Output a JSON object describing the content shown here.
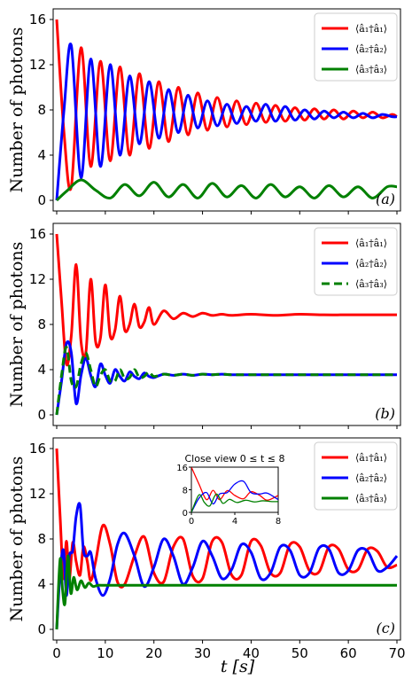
{
  "chart_data": [
    {
      "panel": "(a)",
      "type": "line",
      "ylabel": "Number of photons",
      "xlabel": "",
      "xlim": [
        0,
        70
      ],
      "ylim": [
        0,
        16
      ],
      "yticks": [
        "0",
        "4",
        "8",
        "12",
        "16"
      ],
      "grid": false,
      "legend_position": "top-right",
      "series": [
        {
          "name": "⟨â₁†â₁⟩",
          "color": "#ff0000",
          "x": [
            0,
            1.5,
            3,
            5,
            7,
            9,
            11,
            13,
            15,
            17,
            19,
            21,
            23,
            25,
            27,
            29,
            31,
            33,
            35,
            37,
            39,
            41,
            43,
            45,
            47,
            49,
            51,
            53,
            55,
            57,
            59,
            61,
            63,
            65,
            67,
            69,
            70
          ],
          "y": [
            16,
            6,
            1.2,
            13.5,
            3,
            12.3,
            3.5,
            11.8,
            4,
            11.2,
            4.6,
            10.5,
            5.2,
            10,
            5.8,
            9.5,
            6.2,
            9.1,
            6.5,
            8.8,
            6.7,
            8.6,
            6.9,
            8.4,
            7,
            8.2,
            7.1,
            8.1,
            7.2,
            8,
            7.2,
            7.9,
            7.3,
            7.8,
            7.3,
            7.6,
            7.4
          ]
        },
        {
          "name": "⟨â₂†â₂⟩",
          "color": "#0000ff",
          "x": [
            0,
            1.5,
            3,
            5,
            7,
            9,
            11,
            13,
            15,
            17,
            19,
            21,
            23,
            25,
            27,
            29,
            31,
            33,
            35,
            37,
            39,
            41,
            43,
            45,
            47,
            49,
            51,
            53,
            55,
            57,
            59,
            61,
            63,
            65,
            67,
            69,
            70
          ],
          "y": [
            0,
            8,
            13.7,
            2,
            12.5,
            3,
            12,
            4,
            11,
            5,
            10.5,
            5.5,
            9.8,
            6,
            9.3,
            6.4,
            8.8,
            6.6,
            8.5,
            6.8,
            8.3,
            7,
            8.5,
            7,
            8.3,
            7.1,
            8,
            7.2,
            7.9,
            7.3,
            7.8,
            7.3,
            7.7,
            7.3,
            7.6,
            7.4,
            7.4
          ]
        },
        {
          "name": "⟨â₃†â₃⟩",
          "color": "#008000",
          "x": [
            0,
            2,
            5,
            8,
            11,
            14,
            17,
            20,
            23,
            26,
            29,
            32,
            35,
            38,
            41,
            44,
            47,
            50,
            53,
            56,
            59,
            62,
            65,
            68,
            70
          ],
          "y": [
            0,
            0.8,
            1.8,
            0.9,
            0.2,
            1.4,
            0.4,
            1.6,
            0.3,
            1.4,
            0.2,
            1.5,
            0.3,
            1.3,
            0.2,
            1.4,
            0.3,
            1.2,
            0.2,
            1.3,
            0.3,
            1.2,
            0.2,
            1.2,
            1.2
          ]
        }
      ],
      "annotation": "(a)"
    },
    {
      "panel": "(b)",
      "type": "line",
      "ylabel": "Number of photons",
      "xlabel": "",
      "xlim": [
        0,
        70
      ],
      "ylim": [
        0,
        16
      ],
      "yticks": [
        "0",
        "4",
        "8",
        "12",
        "16"
      ],
      "grid": false,
      "legend_position": "top-right",
      "series": [
        {
          "name": "⟨â₁†â₁⟩",
          "color": "#ff0000",
          "x": [
            0,
            1,
            2,
            3,
            4,
            5,
            6,
            7,
            8,
            9,
            10,
            11,
            12,
            13,
            14,
            15,
            16,
            17,
            18,
            19,
            20,
            22,
            24,
            26,
            28,
            30,
            32,
            34,
            36,
            40,
            45,
            50,
            55,
            60,
            65,
            70
          ],
          "y": [
            16,
            10,
            4.5,
            7,
            13.3,
            6.5,
            5.5,
            12,
            6.5,
            6.8,
            11.5,
            7,
            7.5,
            10.5,
            7.5,
            8,
            9.8,
            7.8,
            8.2,
            9.5,
            8,
            9.2,
            8.5,
            9,
            8.7,
            9,
            8.8,
            8.9,
            8.8,
            8.9,
            8.8,
            8.9,
            8.85,
            8.85,
            8.85,
            8.85
          ]
        },
        {
          "name": "⟨â₂†â₂⟩",
          "color": "#0000ff",
          "x": [
            0,
            1,
            2,
            3,
            4,
            5,
            6,
            7,
            8,
            9,
            10,
            11,
            12,
            13,
            14,
            15,
            16,
            17,
            18,
            19,
            20,
            22,
            24,
            26,
            28,
            30,
            32,
            34,
            36,
            40,
            45,
            50,
            55,
            60,
            65,
            70
          ],
          "y": [
            0,
            3,
            6.3,
            5.5,
            1,
            3.5,
            5,
            3.5,
            2.5,
            4.5,
            3.5,
            2.8,
            4,
            3.4,
            3,
            3.8,
            3.4,
            3.2,
            3.7,
            3.4,
            3.3,
            3.6,
            3.5,
            3.6,
            3.5,
            3.6,
            3.55,
            3.6,
            3.55,
            3.55,
            3.55,
            3.55,
            3.55,
            3.55,
            3.55,
            3.55
          ]
        },
        {
          "name": "⟨â₃†â₃⟩",
          "color": "#008000",
          "dashed": true,
          "x": [
            0,
            1,
            2,
            3,
            4,
            5,
            6,
            7,
            8,
            9,
            10,
            11,
            12,
            13,
            14,
            15,
            16,
            17,
            18,
            19,
            20,
            22,
            24,
            26,
            28,
            30,
            32,
            34,
            36,
            40,
            45,
            50,
            55,
            60,
            65,
            70
          ],
          "y": [
            0,
            3.5,
            6,
            3,
            2.5,
            4.5,
            5.5,
            4,
            2.5,
            3.5,
            4,
            3,
            3,
            4,
            3.2,
            3.3,
            4,
            3.3,
            3.4,
            3.8,
            3.4,
            3.6,
            3.5,
            3.6,
            3.5,
            3.6,
            3.55,
            3.6,
            3.55,
            3.55,
            3.55,
            3.55,
            3.55,
            3.55,
            3.55,
            3.55
          ]
        }
      ],
      "annotation": "(b)"
    },
    {
      "panel": "(c)",
      "type": "line",
      "ylabel": "Number of photons",
      "xlabel": "t [s]",
      "xlim": [
        0,
        70
      ],
      "ylim": [
        0,
        16
      ],
      "xticks": [
        "0",
        "10",
        "20",
        "30",
        "40",
        "50",
        "60",
        "70"
      ],
      "yticks": [
        "0",
        "4",
        "8",
        "12",
        "16"
      ],
      "grid": false,
      "legend_position": "top-right",
      "series": [
        {
          "name": "⟨â₁†â₁⟩",
          "color": "#ff0000",
          "x": [
            0,
            0.7,
            1.4,
            2,
            2.6,
            3.3,
            4,
            4.8,
            5.5,
            6.3,
            7,
            8,
            9.5,
            11,
            12.5,
            14,
            16,
            18,
            20,
            22,
            24,
            26,
            28,
            30,
            32,
            34,
            36,
            38,
            40,
            42,
            44,
            46,
            48,
            50,
            52,
            54,
            56,
            58,
            60,
            62,
            64,
            66,
            68,
            70
          ],
          "y": [
            16,
            10,
            4.5,
            7.8,
            4.5,
            7.7,
            6,
            4.8,
            7.3,
            6,
            4.3,
            6,
            9.2,
            7.5,
            4.2,
            4,
            6.5,
            8.2,
            5,
            4.2,
            7.3,
            8,
            4.7,
            4.5,
            7.8,
            7.7,
            4.8,
            4.8,
            7.8,
            7.4,
            5,
            5,
            7.5,
            7.3,
            5.2,
            5.1,
            7.3,
            7.1,
            5.3,
            5.3,
            7.1,
            6.9,
            5.5,
            5.7
          ]
        },
        {
          "name": "⟨â₂†â₂⟩",
          "color": "#0000ff",
          "x": [
            0,
            0.7,
            1.4,
            2,
            2.6,
            3.3,
            4,
            4.8,
            5.5,
            6.3,
            7,
            8,
            9.5,
            11,
            12.5,
            14,
            16,
            18,
            20,
            22,
            24,
            26,
            28,
            30,
            32,
            34,
            36,
            38,
            40,
            42,
            44,
            46,
            48,
            50,
            52,
            54,
            56,
            58,
            60,
            62,
            64,
            66,
            68,
            70
          ],
          "y": [
            0,
            5,
            7,
            3,
            6.5,
            7,
            10,
            11,
            7,
            6.5,
            6.8,
            4.5,
            3,
            4.5,
            7.5,
            8.5,
            6.5,
            3.8,
            5.5,
            8,
            6.5,
            4,
            5.5,
            7.8,
            6.5,
            4.5,
            5.3,
            7.5,
            6.8,
            4.5,
            5,
            7.3,
            7,
            4.8,
            5,
            7.2,
            7.1,
            5,
            5.2,
            7,
            6.9,
            5.2,
            5.5,
            6.5
          ]
        },
        {
          "name": "⟨â₃†â₃⟩",
          "color": "#008000",
          "x": [
            0,
            0.7,
            1.2,
            1.7,
            2.3,
            2.9,
            3.5,
            4.2,
            5,
            5.8,
            6.6,
            7.5,
            8.5,
            10,
            15,
            20,
            30,
            40,
            50,
            60,
            70
          ],
          "y": [
            0,
            6.2,
            3.5,
            2.3,
            6.5,
            3.2,
            4.6,
            3.5,
            4.3,
            3.7,
            4.1,
            3.8,
            3.9,
            3.9,
            3.9,
            3.9,
            3.9,
            3.9,
            3.9,
            3.9,
            3.9
          ]
        }
      ],
      "annotation": "(c)",
      "inset": {
        "title": "Close view 0 ≤ t ≤ 8",
        "xlim": [
          0,
          8
        ],
        "ylim": [
          0,
          16
        ],
        "xticks": [
          "0",
          "4",
          "8"
        ],
        "yticks": [
          "0",
          "8",
          "16"
        ]
      }
    }
  ]
}
